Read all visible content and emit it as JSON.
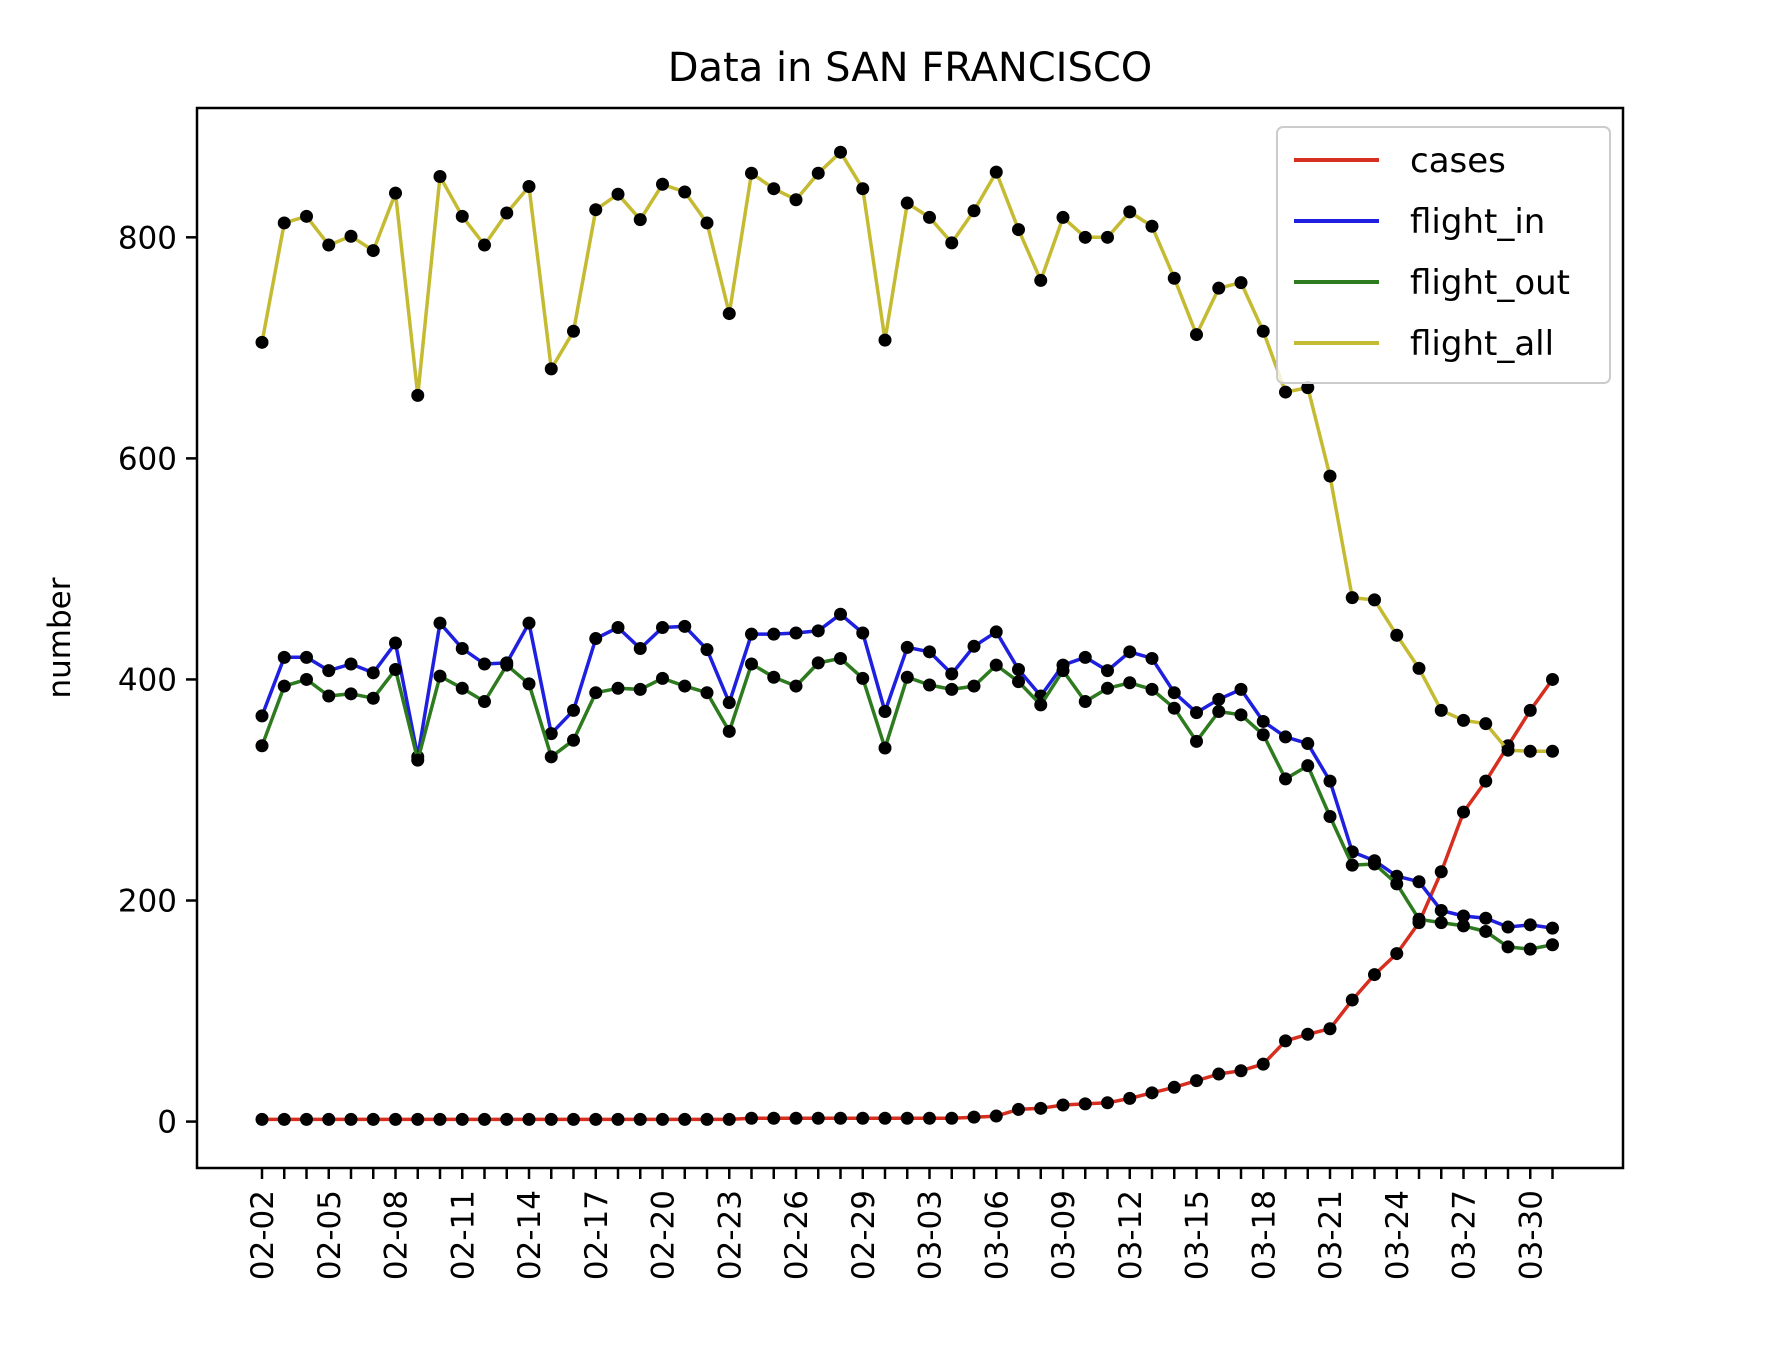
{
  "chart_data": {
    "type": "line",
    "title": "Data in SAN FRANCISCO",
    "xlabel": "",
    "ylabel": "number",
    "ylim": [
      -42,
      917
    ],
    "yticks": [
      0,
      200,
      400,
      600,
      800
    ],
    "grid": false,
    "legend_position": "top-right",
    "x": [
      "02-02",
      "02-03",
      "02-04",
      "02-05",
      "02-06",
      "02-07",
      "02-08",
      "02-09",
      "02-10",
      "02-11",
      "02-12",
      "02-13",
      "02-14",
      "02-15",
      "02-16",
      "02-17",
      "02-18",
      "02-19",
      "02-20",
      "02-21",
      "02-22",
      "02-23",
      "02-24",
      "02-25",
      "02-26",
      "02-27",
      "02-28",
      "02-29",
      "03-01",
      "03-02",
      "03-03",
      "03-04",
      "03-05",
      "03-06",
      "03-07",
      "03-08",
      "03-09",
      "03-10",
      "03-11",
      "03-12",
      "03-13",
      "03-14",
      "03-15",
      "03-16",
      "03-17",
      "03-18",
      "03-19",
      "03-20",
      "03-21",
      "03-22",
      "03-23",
      "03-24",
      "03-25",
      "03-26",
      "03-27",
      "03-28",
      "03-29",
      "03-30",
      "03-31"
    ],
    "xtick_labels": [
      "02-02",
      "02-05",
      "02-08",
      "02-11",
      "02-14",
      "02-17",
      "02-20",
      "02-23",
      "02-26",
      "02-29",
      "03-03",
      "03-06",
      "03-09",
      "03-12",
      "03-15",
      "03-18",
      "03-21",
      "03-24",
      "03-27",
      "03-30"
    ],
    "series": [
      {
        "name": "cases",
        "color": "#d62e1f",
        "values": [
          2,
          2,
          2,
          2,
          2,
          2,
          2,
          2,
          2,
          2,
          2,
          2,
          2,
          2,
          2,
          2,
          2,
          2,
          2,
          2,
          2,
          2,
          3,
          3,
          3,
          3,
          3,
          3,
          3,
          3,
          3,
          3,
          4,
          5,
          11,
          12,
          15,
          16,
          17,
          21,
          26,
          31,
          37,
          43,
          46,
          52,
          73,
          79,
          84,
          110,
          133,
          152,
          180,
          226,
          280,
          308,
          340,
          372,
          400
        ]
      },
      {
        "name": "flight_in",
        "color": "#1f1fe0",
        "values": [
          367,
          420,
          420,
          408,
          414,
          406,
          433,
          330,
          451,
          428,
          414,
          415,
          451,
          351,
          372,
          437,
          447,
          428,
          447,
          448,
          427,
          379,
          441,
          441,
          442,
          444,
          459,
          442,
          371,
          429,
          425,
          405,
          430,
          443,
          409,
          385,
          413,
          420,
          408,
          425,
          419,
          388,
          370,
          382,
          391,
          362,
          348,
          342,
          308,
          244,
          236,
          222,
          217,
          191,
          186,
          184,
          176,
          178,
          175
        ]
      },
      {
        "name": "flight_out",
        "color": "#2e7a1f",
        "values": [
          340,
          394,
          400,
          385,
          387,
          383,
          409,
          327,
          403,
          392,
          380,
          413,
          396,
          330,
          345,
          388,
          392,
          391,
          401,
          394,
          388,
          353,
          414,
          402,
          394,
          415,
          419,
          401,
          338,
          402,
          395,
          391,
          394,
          413,
          398,
          377,
          408,
          380,
          392,
          397,
          391,
          374,
          344,
          371,
          368,
          350,
          310,
          322,
          276,
          232,
          233,
          215,
          183,
          180,
          177,
          172,
          158,
          156,
          160
        ]
      },
      {
        "name": "flight_all",
        "color": "#c5bb32",
        "values": [
          705,
          813,
          819,
          793,
          801,
          788,
          840,
          657,
          855,
          819,
          793,
          822,
          846,
          681,
          715,
          825,
          839,
          816,
          848,
          841,
          813,
          731,
          858,
          844,
          834,
          858,
          877,
          844,
          707,
          831,
          818,
          795,
          824,
          859,
          807,
          761,
          818,
          800,
          800,
          823,
          810,
          763,
          712,
          754,
          759,
          715,
          660,
          664,
          584,
          474,
          472,
          440,
          410,
          372,
          363,
          360,
          336,
          335,
          335
        ]
      }
    ]
  }
}
